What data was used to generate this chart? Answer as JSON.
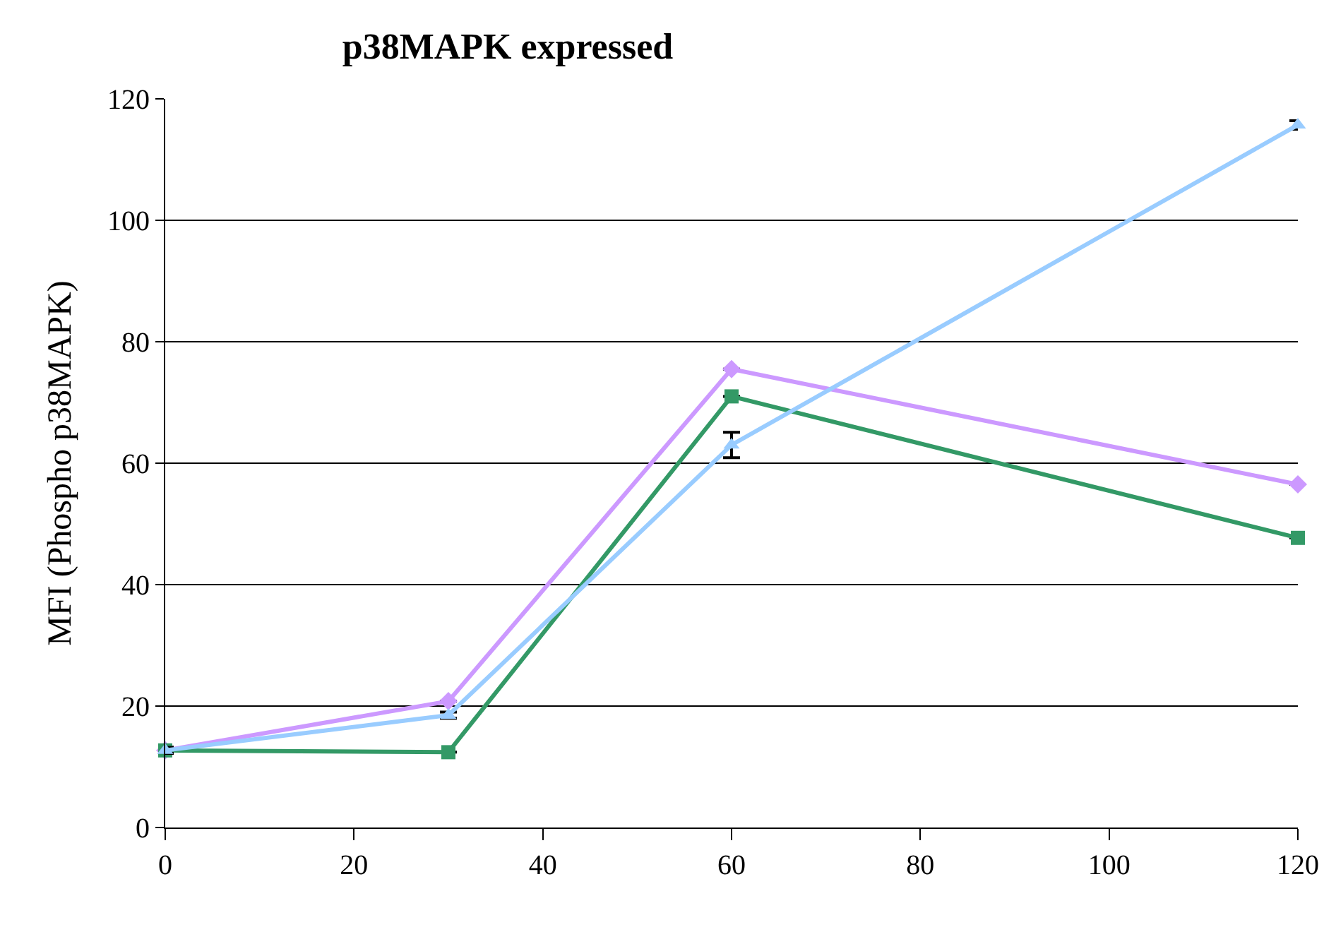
{
  "chart_data": {
    "type": "line",
    "title": "p38MAPK expressed",
    "ylabel": "MFI (Phospho p38MAPK)",
    "x": [
      0,
      30,
      60,
      120
    ],
    "series": [
      {
        "color": "#cc99ff",
        "marker": "diamond",
        "values": [
          12.7,
          20.8,
          75.5,
          56.5
        ],
        "errors": [
          0.5,
          null,
          null,
          null
        ]
      },
      {
        "color": "#339966",
        "marker": "square",
        "values": [
          12.7,
          12.4,
          71,
          47.7
        ],
        "errors": [
          0.5,
          null,
          null,
          null
        ]
      },
      {
        "color": "#99ccff",
        "marker": "triangle",
        "values": [
          12.7,
          18.5,
          63,
          115.7
        ],
        "errors": [
          0.5,
          0.5,
          2.1,
          0.7
        ]
      }
    ],
    "xlim": [
      0,
      120
    ],
    "xticks": [
      0,
      20,
      40,
      60,
      80,
      100,
      120
    ],
    "ylim": [
      0,
      120
    ],
    "yticks": [
      0,
      20,
      40,
      60,
      80,
      100,
      120
    ],
    "grid": "y"
  }
}
